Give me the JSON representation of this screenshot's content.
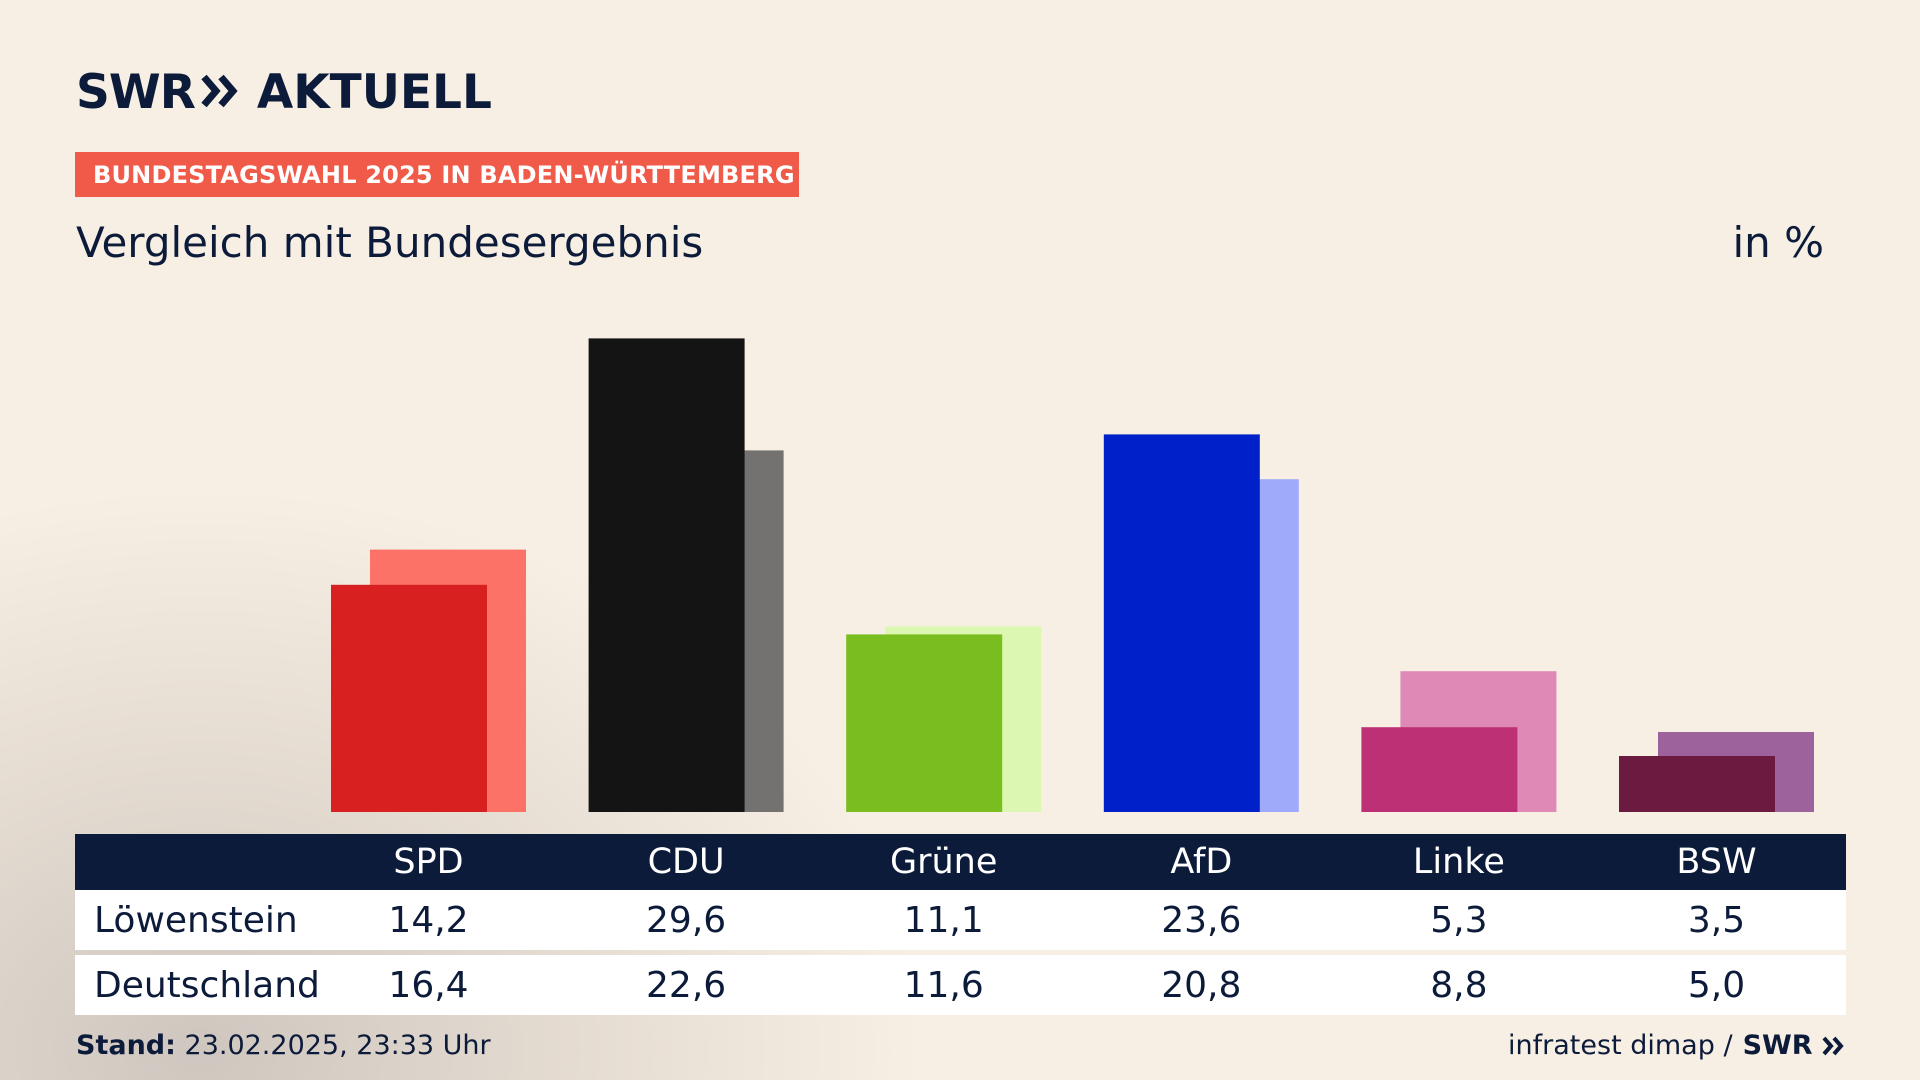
{
  "header": {
    "logo_swr": "SWR",
    "logo_aktuell": "AKTUELL",
    "tag": "BUNDESTAGSWAHL 2025 IN BADEN-WÜRTTEMBERG",
    "subtitle": "Vergleich mit Bundesergebnis",
    "unit": "in %"
  },
  "table": {
    "rows": [
      {
        "label": "Löwenstein",
        "values": [
          "14,2",
          "29,6",
          "11,1",
          "23,6",
          "5,3",
          "3,5"
        ]
      },
      {
        "label": "Deutschland",
        "values": [
          "16,4",
          "22,6",
          "11,6",
          "20,8",
          "8,8",
          "5,0"
        ]
      }
    ]
  },
  "footer": {
    "stand_label": "Stand:",
    "stand_value": "23.02.2025, 23:33 Uhr",
    "source": "infratest dimap /",
    "source_logo": "SWR"
  },
  "chart_data": {
    "type": "bar",
    "categories": [
      "SPD",
      "CDU",
      "Grüne",
      "AfD",
      "Linke",
      "BSW"
    ],
    "series": [
      {
        "name": "Löwenstein",
        "values": [
          14.2,
          29.6,
          11.1,
          23.6,
          5.3,
          3.5
        ]
      },
      {
        "name": "Deutschland",
        "values": [
          16.4,
          22.6,
          11.6,
          20.8,
          8.8,
          5.0
        ]
      }
    ],
    "colors_primary": [
      "#d7201f",
      "#141414",
      "#7abd1f",
      "#0021c9",
      "#bd3075",
      "#6c1a40"
    ],
    "colors_secondary": [
      "#fd7267",
      "#737270",
      "#dbf7b2",
      "#a0aafb",
      "#df89b6",
      "#9d619c"
    ],
    "ylim": [
      0,
      30
    ],
    "ylabel": "in %",
    "grid": false,
    "legend": "none"
  }
}
